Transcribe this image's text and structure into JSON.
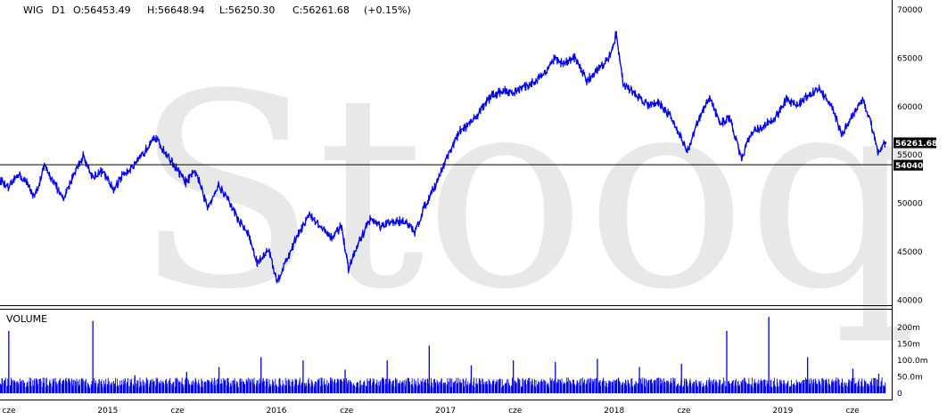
{
  "header": {
    "symbol": "WIG",
    "interval": "D1",
    "open": "O:56453.49",
    "high": "H:56648.94",
    "low": "L:56250.30",
    "close": "C:56261.68",
    "change": "(+0.15%)"
  },
  "watermark": "Stooq",
  "volume_label": "VOLUME",
  "colors": {
    "series": "#0000ee",
    "grid_line": "#000000",
    "badge": "#000000",
    "watermark": "#e8e8e8"
  },
  "chart_data": [
    {
      "type": "line",
      "title": "WIG D1",
      "xlim": [
        "2014-06-01",
        "2019-09-15"
      ],
      "ylim": [
        39500,
        71000
      ],
      "y_ticks": [
        "70000",
        "65000",
        "60000",
        "55000",
        "50000",
        "45000",
        "40000"
      ],
      "x_ticks": [
        "cze",
        "2015",
        "cze",
        "2016",
        "cze",
        "2017",
        "cze",
        "2018",
        "cze",
        "2019",
        "cze"
      ],
      "last_value_label": "56261.68",
      "reference_line": {
        "value": 54040,
        "label": "54040"
      },
      "series": [
        {
          "values": [
            [
              "2014-06-02",
              52400
            ],
            [
              "2014-06-20",
              51500
            ],
            [
              "2014-07-10",
              53100
            ],
            [
              "2014-07-31",
              52000
            ],
            [
              "2014-08-15",
              50600
            ],
            [
              "2014-09-05",
              53800
            ],
            [
              "2014-09-25",
              52300
            ],
            [
              "2014-10-16",
              50300
            ],
            [
              "2014-11-06",
              52900
            ],
            [
              "2014-11-28",
              54900
            ],
            [
              "2014-12-17",
              52800
            ],
            [
              "2015-01-09",
              53300
            ],
            [
              "2015-02-02",
              51400
            ],
            [
              "2015-02-25",
              53200
            ],
            [
              "2015-03-20",
              53900
            ],
            [
              "2015-04-10",
              55300
            ],
            [
              "2015-04-29",
              57000
            ],
            [
              "2015-05-20",
              55600
            ],
            [
              "2015-06-12",
              54000
            ],
            [
              "2015-07-08",
              52200
            ],
            [
              "2015-07-30",
              53300
            ],
            [
              "2015-08-24",
              49600
            ],
            [
              "2015-09-17",
              51900
            ],
            [
              "2015-10-08",
              50400
            ],
            [
              "2015-10-30",
              48300
            ],
            [
              "2015-11-20",
              46900
            ],
            [
              "2015-12-10",
              43800
            ],
            [
              "2016-01-04",
              45300
            ],
            [
              "2016-01-21",
              41900
            ],
            [
              "2016-02-12",
              44200
            ],
            [
              "2016-03-08",
              47000
            ],
            [
              "2016-04-01",
              48800
            ],
            [
              "2016-04-22",
              47700
            ],
            [
              "2016-05-17",
              46400
            ],
            [
              "2016-06-09",
              47700
            ],
            [
              "2016-06-24",
              43200
            ],
            [
              "2016-07-15",
              45800
            ],
            [
              "2016-08-10",
              48400
            ],
            [
              "2016-09-02",
              47600
            ],
            [
              "2016-09-26",
              48000
            ],
            [
              "2016-10-20",
              48300
            ],
            [
              "2016-11-15",
              47000
            ],
            [
              "2016-12-06",
              49700
            ],
            [
              "2016-12-30",
              52000
            ],
            [
              "2017-01-25",
              54900
            ],
            [
              "2017-02-21",
              57500
            ],
            [
              "2017-03-17",
              58300
            ],
            [
              "2017-04-10",
              59900
            ],
            [
              "2017-05-01",
              61200
            ],
            [
              "2017-05-25",
              61600
            ],
            [
              "2017-06-20",
              61500
            ],
            [
              "2017-07-20",
              62200
            ],
            [
              "2017-08-18",
              63200
            ],
            [
              "2017-09-12",
              64900
            ],
            [
              "2017-10-05",
              64400
            ],
            [
              "2017-10-27",
              65100
            ],
            [
              "2017-11-22",
              62600
            ],
            [
              "2017-12-14",
              63800
            ],
            [
              "2018-01-08",
              64900
            ],
            [
              "2018-01-25",
              67500
            ],
            [
              "2018-02-09",
              62300
            ],
            [
              "2018-03-06",
              61300
            ],
            [
              "2018-04-03",
              60200
            ],
            [
              "2018-04-25",
              60500
            ],
            [
              "2018-05-18",
              59300
            ],
            [
              "2018-06-11",
              57200
            ],
            [
              "2018-06-28",
              55300
            ],
            [
              "2018-07-20",
              58400
            ],
            [
              "2018-08-15",
              61000
            ],
            [
              "2018-09-05",
              58300
            ],
            [
              "2018-09-28",
              58800
            ],
            [
              "2018-10-23",
              54500
            ],
            [
              "2018-11-14",
              57500
            ],
            [
              "2018-12-05",
              57800
            ],
            [
              "2019-01-03",
              58800
            ],
            [
              "2019-01-28",
              60700
            ],
            [
              "2019-02-20",
              60100
            ],
            [
              "2019-03-15",
              61100
            ],
            [
              "2019-04-09",
              61900
            ],
            [
              "2019-05-06",
              59900
            ],
            [
              "2019-05-28",
              57200
            ],
            [
              "2019-06-20",
              59100
            ],
            [
              "2019-07-12",
              60800
            ],
            [
              "2019-07-31",
              58100
            ],
            [
              "2019-08-15",
              55000
            ],
            [
              "2019-08-30",
              56261.68
            ]
          ]
        }
      ]
    },
    {
      "type": "bar",
      "title": "VOLUME",
      "ylim": [
        0,
        230
      ],
      "y_ticks": [
        "200m",
        "150m",
        "100.0m",
        "50.0m",
        "0"
      ],
      "typical_daily_volume_m": 40,
      "spikes": [
        [
          "2014-06-20",
          190
        ],
        [
          "2014-12-19",
          220
        ],
        [
          "2015-03-20",
          55
        ],
        [
          "2015-07-10",
          65
        ],
        [
          "2015-09-18",
          80
        ],
        [
          "2015-12-18",
          110
        ],
        [
          "2016-03-18",
          100
        ],
        [
          "2016-06-17",
          72
        ],
        [
          "2016-09-16",
          100
        ],
        [
          "2016-12-16",
          145
        ],
        [
          "2017-03-17",
          85
        ],
        [
          "2017-06-16",
          100
        ],
        [
          "2017-09-15",
          95
        ],
        [
          "2017-12-15",
          105
        ],
        [
          "2018-03-16",
          80
        ],
        [
          "2018-06-15",
          90
        ],
        [
          "2018-09-21",
          190
        ],
        [
          "2018-12-21",
          232
        ],
        [
          "2019-03-15",
          110
        ],
        [
          "2019-06-21",
          75
        ],
        [
          "2019-08-16",
          60
        ]
      ]
    }
  ]
}
